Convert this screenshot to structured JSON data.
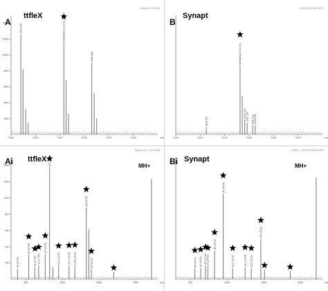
{
  "figure": {
    "accent": "#7f7f7f",
    "star_color": "#000000"
  },
  "chart_data": [
    {
      "id": "A",
      "type": "line",
      "label": "A",
      "instrument": "ttfleX",
      "tiny_header_right": "Sample A / 100 MS",
      "x_unit": "m/z",
      "xlim": [
        2190,
        2250
      ],
      "ylim": [
        0,
        15000
      ],
      "yticks": [
        2000,
        4000,
        6000,
        8000,
        10000,
        12000,
        14000
      ],
      "xticks": [
        2190,
        2200,
        2210,
        2220,
        2230,
        2240
      ],
      "xtick_labels": [
        "2190",
        "2200",
        "2210",
        "2220",
        "2230",
        "2240"
      ],
      "peaks": [
        {
          "x": 2194.0,
          "y": 12600,
          "label": "2200.405"
        },
        {
          "x": 2194.9,
          "y": 8200,
          "label": ""
        },
        {
          "x": 2196.0,
          "y": 3200,
          "label": ""
        },
        {
          "x": 2197.0,
          "y": 1500,
          "label": ""
        },
        {
          "x": 2211.6,
          "y": 11500,
          "label": "Hb-Baltimore (10-31)",
          "star": true
        },
        {
          "x": 2212.5,
          "y": 6800,
          "label": ""
        },
        {
          "x": 2213.5,
          "y": 2600,
          "label": ""
        },
        {
          "x": 2223.0,
          "y": 9000,
          "label": "2236.188"
        },
        {
          "x": 2224.0,
          "y": 5200,
          "label": ""
        },
        {
          "x": 2225.0,
          "y": 2000,
          "label": ""
        }
      ]
    },
    {
      "id": "B",
      "type": "line",
      "label": "B",
      "instrument": "Synapt",
      "tiny_header_right": "SYN01_MH MAS MH+",
      "x_unit": "m/z",
      "xlim": [
        2190,
        2250
      ],
      "ylim": [
        0,
        15000
      ],
      "yticks": [],
      "xticks": [
        2190,
        2200,
        2210,
        2220,
        2230,
        2240
      ],
      "xtick_labels": [
        "2190",
        "2200",
        "2210",
        "2220",
        "2230",
        "2240"
      ],
      "peaks": [
        {
          "x": 2202.5,
          "y": 900,
          "label": "2229.152"
        },
        {
          "x": 2216.3,
          "y": 8600,
          "label": "Hb-Baltimore (10-31)",
          "star": true
        },
        {
          "x": 2217.2,
          "y": 4800,
          "label": ""
        },
        {
          "x": 2218.2,
          "y": 1900,
          "label": "2230.162"
        },
        {
          "x": 2219.2,
          "y": 1500,
          "label": "2230.167"
        },
        {
          "x": 2221.5,
          "y": 1100,
          "label": "2231.131"
        },
        {
          "x": 2222.5,
          "y": 1200,
          "label": "2234.125"
        }
      ]
    },
    {
      "id": "Ai",
      "type": "line",
      "label": "Ai",
      "instrument": "ttfleX",
      "tiny_header_right": "Sample A1 / 100 MSMS",
      "mh": "MH+",
      "x_unit": "m/z",
      "xlim": [
        300,
        2300
      ],
      "ylim": [
        0,
        1500
      ],
      "yticks": [
        200,
        400,
        600,
        800,
        1000,
        1200,
        1400
      ],
      "xticks": [
        500,
        1000,
        1500,
        2000
      ],
      "xtick_labels": [
        "500",
        "1000",
        "1500",
        "2000"
      ],
      "peaks": [
        {
          "x": 388,
          "y": 130,
          "label": "b3 (10-22)"
        },
        {
          "x": 540,
          "y": 300,
          "label": "y6 (25-28)",
          "star": true
        },
        {
          "x": 625,
          "y": 150,
          "label": "y2 (17-22)",
          "star": true
        },
        {
          "x": 676,
          "y": 170,
          "label": "y1 (17-22)",
          "star": true
        },
        {
          "x": 766,
          "y": 310,
          "label": "y7 (18-22)",
          "star": true
        },
        {
          "x": 825,
          "y": 1380,
          "label": "y5 (14-22)",
          "star": true
        },
        {
          "x": 870,
          "y": 150,
          "label": ""
        },
        {
          "x": 948,
          "y": 170,
          "label": "y10 (15-22)",
          "star": true
        },
        {
          "x": 1090,
          "y": 175,
          "label": "y11 (15-22)",
          "star": true
        },
        {
          "x": 1170,
          "y": 180,
          "label": "y12 (15-22)",
          "star": true
        },
        {
          "x": 1325,
          "y": 880,
          "label": "y14 (9-22)",
          "star": true
        },
        {
          "x": 1360,
          "y": 620,
          "label": ""
        },
        {
          "x": 1395,
          "y": 120,
          "label": "y15 (9-22)",
          "star": true
        },
        {
          "x": 1700,
          "y": 90,
          "label": "",
          "star": true
        },
        {
          "x": 2214,
          "y": 1230,
          "label": ""
        }
      ]
    },
    {
      "id": "Bi",
      "type": "line",
      "label": "Bi",
      "instrument": "Synapt",
      "tiny_header_right": "SYN01_1 MSMS 1000 MS/MS",
      "mh": "MH+",
      "x_unit": "m/z",
      "xlim": [
        300,
        2300
      ],
      "ylim": [
        0,
        1500
      ],
      "yticks": [],
      "xticks": [
        500,
        1000,
        1500,
        2000
      ],
      "xtick_labels": [
        "500",
        "1000",
        "1500",
        "2000"
      ],
      "peaks": [
        {
          "x": 560,
          "y": 130,
          "label": "y4 (19-22)",
          "star": true
        },
        {
          "x": 640,
          "y": 140,
          "label": "y5 (18-22)",
          "star": true
        },
        {
          "x": 706,
          "y": 170,
          "label": "y2 (17-22)",
          "star": true
        },
        {
          "x": 738,
          "y": 160,
          "label": "y3 (17-22)",
          "star": true
        },
        {
          "x": 829,
          "y": 350,
          "label": "y8 (16-22)",
          "star": true
        },
        {
          "x": 947,
          "y": 1050,
          "label": "y5 (14-22)",
          "star": true
        },
        {
          "x": 1076,
          "y": 140,
          "label": "y10 (13-22)",
          "star": true
        },
        {
          "x": 1245,
          "y": 150,
          "label": "y11 (13-22)",
          "star": true
        },
        {
          "x": 1330,
          "y": 140,
          "label": "y12 (12-22)",
          "star": true
        },
        {
          "x": 1460,
          "y": 500,
          "label": "y13 (9-22)",
          "star": true
        },
        {
          "x": 1510,
          "y": 120,
          "label": "",
          "star": true
        },
        {
          "x": 1860,
          "y": 100,
          "label": "",
          "star": true
        },
        {
          "x": 2214,
          "y": 1250,
          "label": ""
        }
      ]
    }
  ]
}
